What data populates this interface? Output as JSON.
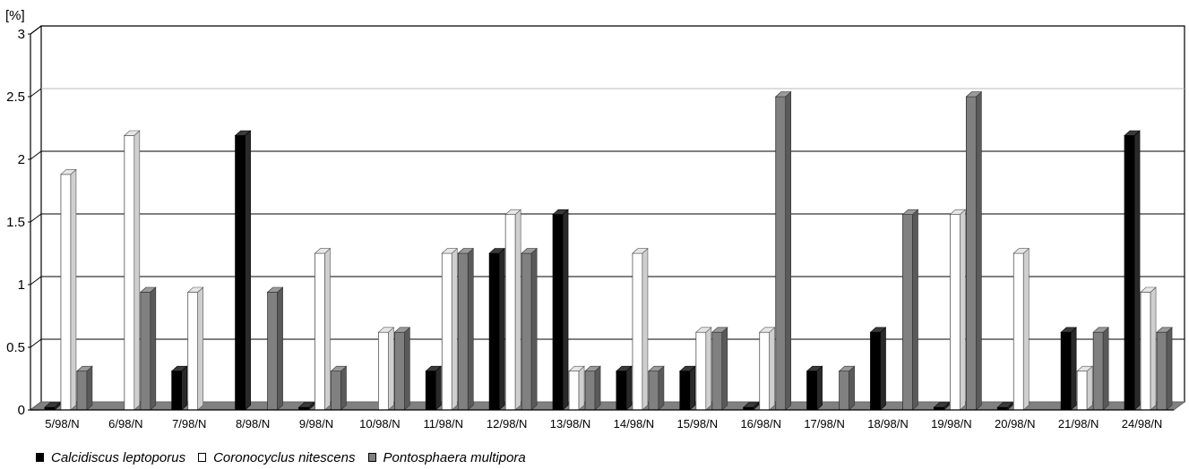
{
  "chart_data": {
    "type": "bar",
    "title": "",
    "ylabel": "[%]",
    "xlabel": "",
    "ylim": [
      0,
      3
    ],
    "yticks": [
      "0",
      "0.5",
      "1",
      "1.5",
      "2",
      "2.5",
      "3"
    ],
    "grid": true,
    "legend_position": "bottom-left",
    "categories": [
      "5/98/N",
      "6/98/N",
      "7/98/N",
      "8/98/N",
      "9/98/N",
      "10/98/N",
      "11/98/N",
      "12/98/N",
      "13/98/N",
      "14/98/N",
      "15/98/N",
      "16/98/N",
      "17/98/N",
      "18/98/N",
      "19/98/N",
      "20/98/N",
      "21/98/N",
      "24/98/N"
    ],
    "series": [
      {
        "name": "Calcidiscus leptoporus",
        "color": "#000000",
        "values": [
          0.02,
          0,
          0.31,
          2.19,
          0.02,
          0,
          0.31,
          1.25,
          1.56,
          0.31,
          0.31,
          0.02,
          0.31,
          0.62,
          0.02,
          0.02,
          0.62,
          2.19
        ]
      },
      {
        "name": "Coronocyclus nitescens",
        "color": "#ffffff",
        "values": [
          1.88,
          2.19,
          0.94,
          0,
          1.25,
          0.62,
          1.25,
          1.56,
          0.31,
          1.25,
          0.62,
          0.62,
          0,
          0,
          1.56,
          1.25,
          0.31,
          0.94
        ]
      },
      {
        "name": "Pontosphaera multipora",
        "color": "#808080",
        "values": [
          0.31,
          0.94,
          0,
          0.94,
          0.31,
          0.62,
          1.25,
          1.25,
          0.31,
          0.31,
          0.62,
          2.5,
          0.31,
          1.56,
          2.5,
          0,
          0.62,
          0.62
        ]
      }
    ]
  }
}
